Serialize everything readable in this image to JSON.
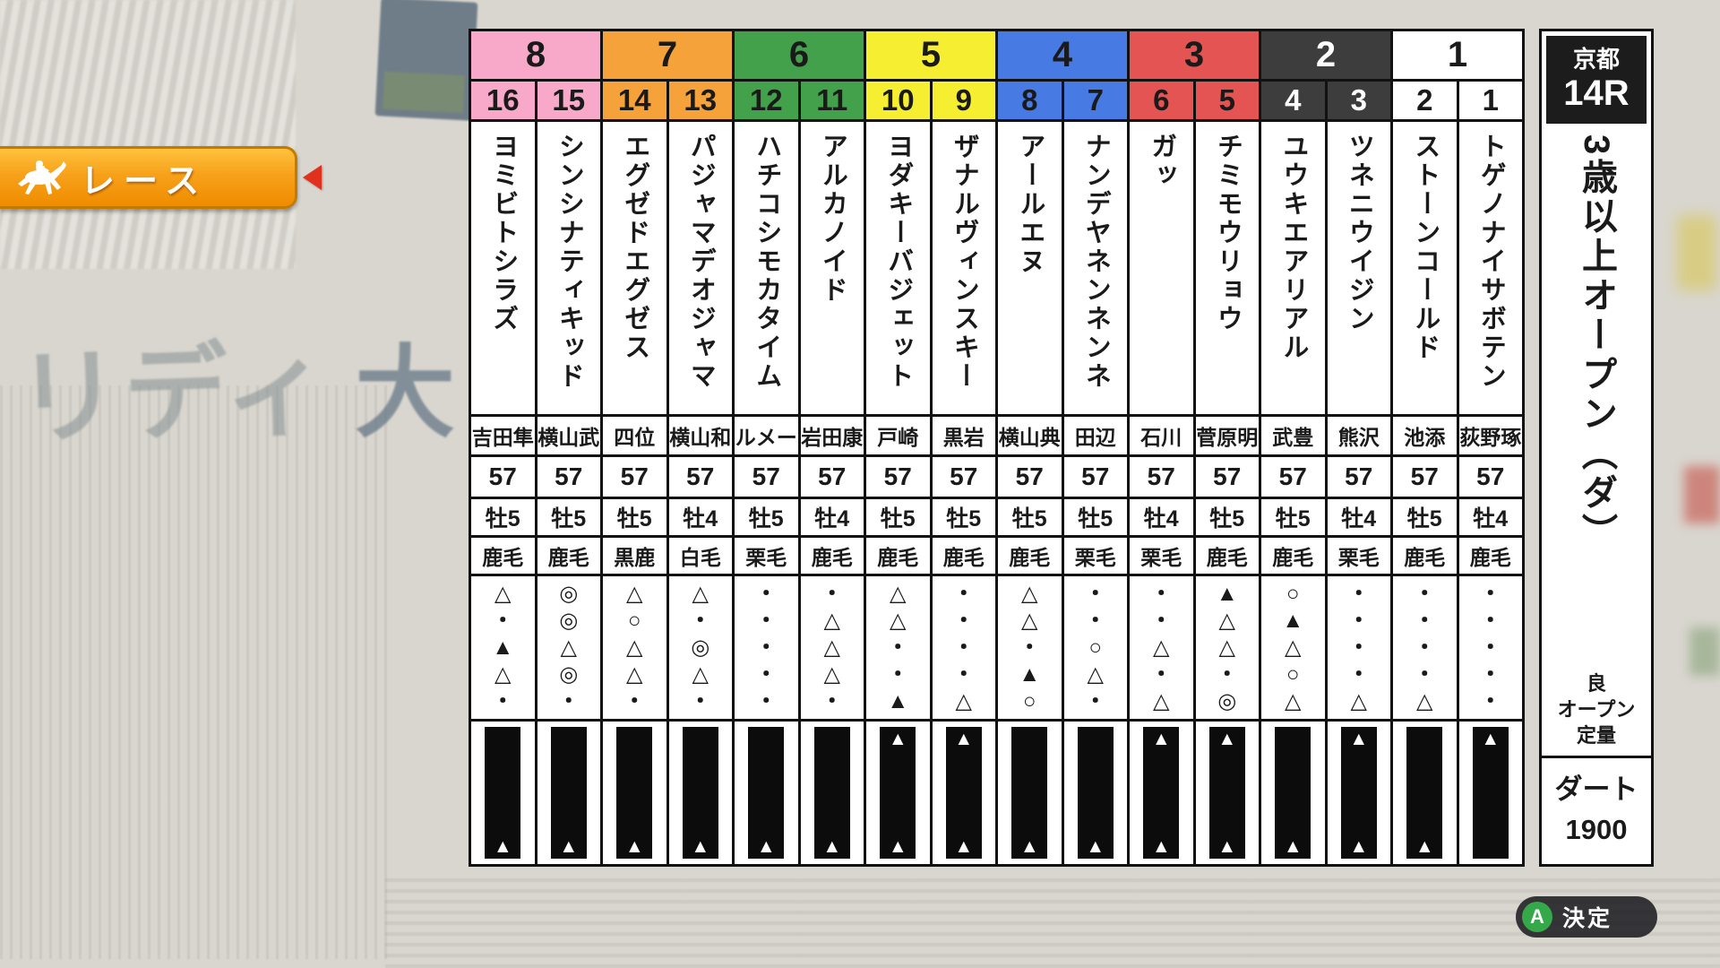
{
  "banner": {
    "label": "レース"
  },
  "race_info": {
    "track": "京都",
    "race_number": "14R",
    "race_name": "3歳以上オープン（ダ）",
    "conditions": [
      "良",
      "オープン",
      "定量"
    ],
    "surface": "ダート",
    "distance": "1900"
  },
  "frames": [
    {
      "number": "8",
      "color": "#f8a8c8",
      "text_color": "#1a1a1a"
    },
    {
      "number": "7",
      "color": "#f4a239",
      "text_color": "#1a1a1a"
    },
    {
      "number": "6",
      "color": "#43a04b",
      "text_color": "#1a1a1a"
    },
    {
      "number": "5",
      "color": "#f6ee30",
      "text_color": "#1a1a1a"
    },
    {
      "number": "4",
      "color": "#477ae3",
      "text_color": "#1a1a1a"
    },
    {
      "number": "3",
      "color": "#e45452",
      "text_color": "#1a1a1a"
    },
    {
      "number": "2",
      "color": "#3d3d3d",
      "text_color": "#ffffff"
    },
    {
      "number": "1",
      "color": "#ffffff",
      "text_color": "#1a1a1a"
    }
  ],
  "horses": [
    {
      "number": "16",
      "frame": "8",
      "name": "ヨミビトシラズ",
      "jockey": "吉田隼",
      "weight": "57",
      "sex_age": "牡5",
      "coat": "鹿毛",
      "marks": [
        "△",
        "・",
        "▲",
        "△",
        "・"
      ],
      "bar_triangles": {
        "top": false,
        "bottom": true
      }
    },
    {
      "number": "15",
      "frame": "8",
      "name": "シンシナティキッド",
      "jockey": "横山武",
      "weight": "57",
      "sex_age": "牡5",
      "coat": "鹿毛",
      "marks": [
        "◎",
        "◎",
        "△",
        "◎",
        "・"
      ],
      "bar_triangles": {
        "top": false,
        "bottom": true
      }
    },
    {
      "number": "14",
      "frame": "7",
      "name": "エグゼドエグゼス",
      "jockey": "四位",
      "weight": "57",
      "sex_age": "牡5",
      "coat": "黒鹿",
      "marks": [
        "△",
        "○",
        "△",
        "△",
        "・"
      ],
      "bar_triangles": {
        "top": false,
        "bottom": true
      }
    },
    {
      "number": "13",
      "frame": "7",
      "name": "パジャマデオジャマ",
      "jockey": "横山和",
      "weight": "57",
      "sex_age": "牡4",
      "coat": "白毛",
      "marks": [
        "△",
        "・",
        "◎",
        "△",
        "・"
      ],
      "bar_triangles": {
        "top": false,
        "bottom": true
      }
    },
    {
      "number": "12",
      "frame": "6",
      "name": "ハチコシモカタイム",
      "jockey": "ルメー",
      "weight": "57",
      "sex_age": "牡5",
      "coat": "栗毛",
      "marks": [
        "・",
        "・",
        "・",
        "・",
        "・"
      ],
      "bar_triangles": {
        "top": false,
        "bottom": true
      }
    },
    {
      "number": "11",
      "frame": "6",
      "name": "アルカノイド",
      "jockey": "岩田康",
      "weight": "57",
      "sex_age": "牡4",
      "coat": "鹿毛",
      "marks": [
        "・",
        "△",
        "△",
        "△",
        "・"
      ],
      "bar_triangles": {
        "top": false,
        "bottom": true
      }
    },
    {
      "number": "10",
      "frame": "5",
      "name": "ヨダキーバジェット",
      "jockey": "戸崎",
      "weight": "57",
      "sex_age": "牡5",
      "coat": "鹿毛",
      "marks": [
        "△",
        "△",
        "・",
        "・",
        "▲"
      ],
      "bar_triangles": {
        "top": true,
        "bottom": true
      }
    },
    {
      "number": "9",
      "frame": "5",
      "name": "ザナルヴィンスキー",
      "jockey": "黒岩",
      "weight": "57",
      "sex_age": "牡5",
      "coat": "鹿毛",
      "marks": [
        "・",
        "・",
        "・",
        "・",
        "△"
      ],
      "bar_triangles": {
        "top": true,
        "bottom": true
      }
    },
    {
      "number": "8",
      "frame": "4",
      "name": "アールエヌ",
      "jockey": "横山典",
      "weight": "57",
      "sex_age": "牡5",
      "coat": "鹿毛",
      "marks": [
        "△",
        "△",
        "・",
        "▲",
        "○"
      ],
      "bar_triangles": {
        "top": false,
        "bottom": true
      }
    },
    {
      "number": "7",
      "frame": "4",
      "name": "ナンデヤネンネンネ",
      "jockey": "田辺",
      "weight": "57",
      "sex_age": "牡5",
      "coat": "栗毛",
      "marks": [
        "・",
        "・",
        "○",
        "△",
        "・"
      ],
      "bar_triangles": {
        "top": false,
        "bottom": true
      }
    },
    {
      "number": "6",
      "frame": "3",
      "name": "ガッ",
      "jockey": "石川",
      "weight": "57",
      "sex_age": "牡4",
      "coat": "栗毛",
      "marks": [
        "・",
        "・",
        "△",
        "・",
        "△"
      ],
      "bar_triangles": {
        "top": true,
        "bottom": true
      }
    },
    {
      "number": "5",
      "frame": "3",
      "name": "チミモウリョウ",
      "jockey": "菅原明",
      "weight": "57",
      "sex_age": "牡5",
      "coat": "鹿毛",
      "marks": [
        "▲",
        "△",
        "△",
        "・",
        "◎"
      ],
      "bar_triangles": {
        "top": true,
        "bottom": true
      }
    },
    {
      "number": "4",
      "frame": "2",
      "name": "ユウキエアリアル",
      "jockey": "武豊",
      "weight": "57",
      "sex_age": "牡5",
      "coat": "鹿毛",
      "marks": [
        "○",
        "▲",
        "△",
        "○",
        "△"
      ],
      "bar_triangles": {
        "top": false,
        "bottom": true
      }
    },
    {
      "number": "3",
      "frame": "2",
      "name": "ツネニウイジン",
      "jockey": "熊沢",
      "weight": "57",
      "sex_age": "牡4",
      "coat": "栗毛",
      "marks": [
        "・",
        "・",
        "・",
        "・",
        "△"
      ],
      "bar_triangles": {
        "top": true,
        "bottom": true
      }
    },
    {
      "number": "2",
      "frame": "1",
      "name": "ストーンコールド",
      "jockey": "池添",
      "weight": "57",
      "sex_age": "牡5",
      "coat": "鹿毛",
      "marks": [
        "・",
        "・",
        "・",
        "・",
        "△"
      ],
      "bar_triangles": {
        "top": false,
        "bottom": true
      }
    },
    {
      "number": "1",
      "frame": "1",
      "name": "トゲノナイサボテン",
      "jockey": "荻野琢",
      "weight": "57",
      "sex_age": "牡4",
      "coat": "鹿毛",
      "marks": [
        "・",
        "・",
        "・",
        "・",
        "・"
      ],
      "bar_triangles": {
        "top": true,
        "bottom": false
      }
    }
  ],
  "button": {
    "key": "A",
    "label": "決定"
  },
  "background": {
    "fragments": [
      "リディ",
      "大"
    ]
  }
}
